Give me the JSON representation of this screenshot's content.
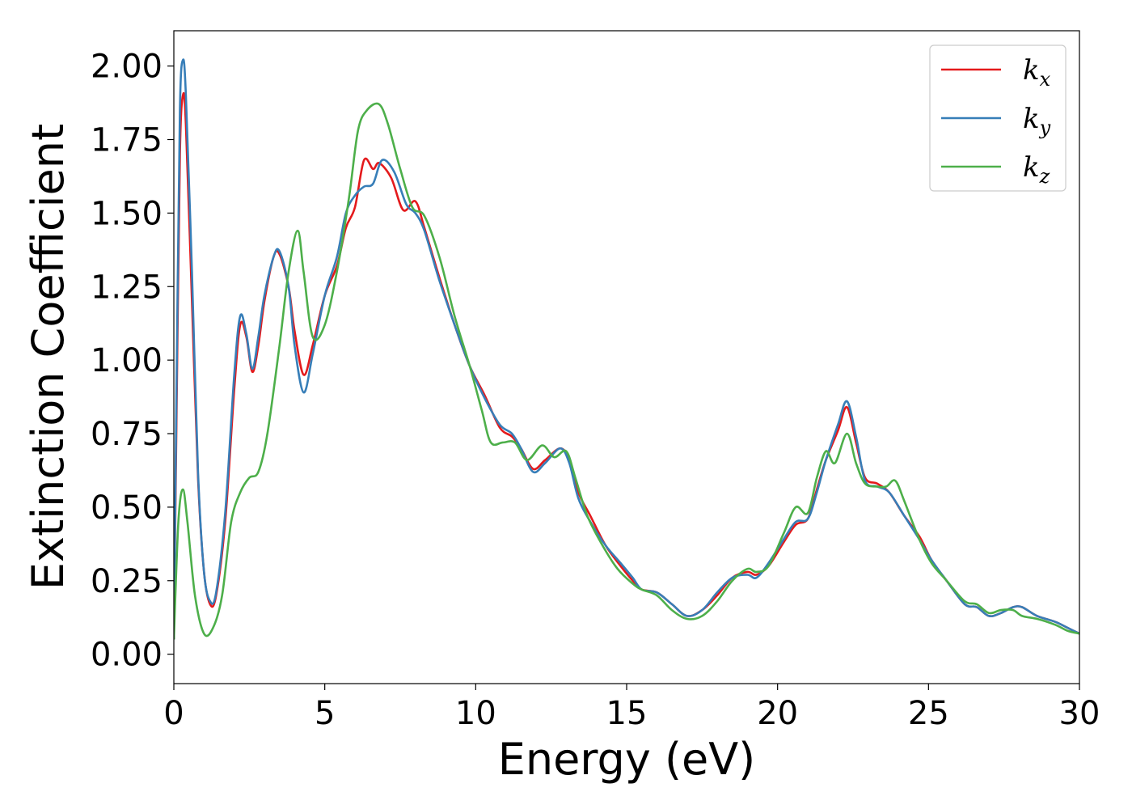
{
  "chart_data": {
    "type": "line",
    "title": "",
    "xlabel": "Energy (eV)",
    "ylabel": "Extinction Coefficient",
    "xlim": [
      0,
      30
    ],
    "ylim": [
      -0.1,
      2.12
    ],
    "xticks": [
      0,
      5,
      10,
      15,
      20,
      25,
      30
    ],
    "xtick_labels": [
      "0",
      "5",
      "10",
      "15",
      "20",
      "25",
      "30"
    ],
    "yticks": [
      0.0,
      0.25,
      0.5,
      0.75,
      1.0,
      1.25,
      1.5,
      1.75,
      2.0
    ],
    "ytick_labels": [
      "0.00",
      "0.25",
      "0.50",
      "0.75",
      "1.00",
      "1.25",
      "1.50",
      "1.75",
      "2.00"
    ],
    "grid": false,
    "legend_position": "top-right",
    "series": [
      {
        "name": "k_x",
        "label_main": "k",
        "label_sub": "x",
        "color": "#e41a1c",
        "points": [
          [
            0,
            0.05
          ],
          [
            0.1,
            0.9
          ],
          [
            0.2,
            1.7
          ],
          [
            0.3,
            1.9
          ],
          [
            0.4,
            1.8
          ],
          [
            0.6,
            1.2
          ],
          [
            0.8,
            0.6
          ],
          [
            1.0,
            0.28
          ],
          [
            1.2,
            0.17
          ],
          [
            1.4,
            0.2
          ],
          [
            1.7,
            0.45
          ],
          [
            2.0,
            0.9
          ],
          [
            2.2,
            1.12
          ],
          [
            2.4,
            1.08
          ],
          [
            2.6,
            0.96
          ],
          [
            2.8,
            1.05
          ],
          [
            3.0,
            1.2
          ],
          [
            3.3,
            1.35
          ],
          [
            3.5,
            1.36
          ],
          [
            3.8,
            1.25
          ],
          [
            4.0,
            1.1
          ],
          [
            4.3,
            0.95
          ],
          [
            4.6,
            1.05
          ],
          [
            5.0,
            1.22
          ],
          [
            5.4,
            1.32
          ],
          [
            5.7,
            1.45
          ],
          [
            6.0,
            1.52
          ],
          [
            6.3,
            1.68
          ],
          [
            6.6,
            1.65
          ],
          [
            6.8,
            1.67
          ],
          [
            7.2,
            1.62
          ],
          [
            7.6,
            1.51
          ],
          [
            8.0,
            1.54
          ],
          [
            8.3,
            1.45
          ],
          [
            8.8,
            1.28
          ],
          [
            9.3,
            1.12
          ],
          [
            9.8,
            0.98
          ],
          [
            10.3,
            0.88
          ],
          [
            10.8,
            0.77
          ],
          [
            11.2,
            0.74
          ],
          [
            11.5,
            0.7
          ],
          [
            11.9,
            0.63
          ],
          [
            12.3,
            0.66
          ],
          [
            12.8,
            0.7
          ],
          [
            13.1,
            0.66
          ],
          [
            13.4,
            0.55
          ],
          [
            13.8,
            0.47
          ],
          [
            14.3,
            0.37
          ],
          [
            14.8,
            0.3
          ],
          [
            15.2,
            0.25
          ],
          [
            15.5,
            0.22
          ],
          [
            16.0,
            0.21
          ],
          [
            16.5,
            0.17
          ],
          [
            17.0,
            0.13
          ],
          [
            17.5,
            0.15
          ],
          [
            18.0,
            0.2
          ],
          [
            18.5,
            0.26
          ],
          [
            19.0,
            0.28
          ],
          [
            19.3,
            0.27
          ],
          [
            19.7,
            0.3
          ],
          [
            20.2,
            0.38
          ],
          [
            20.6,
            0.44
          ],
          [
            21.0,
            0.46
          ],
          [
            21.3,
            0.56
          ],
          [
            21.6,
            0.66
          ],
          [
            22.0,
            0.76
          ],
          [
            22.3,
            0.84
          ],
          [
            22.6,
            0.72
          ],
          [
            22.9,
            0.6
          ],
          [
            23.3,
            0.58
          ],
          [
            23.7,
            0.55
          ],
          [
            24.2,
            0.47
          ],
          [
            24.7,
            0.4
          ],
          [
            25.1,
            0.32
          ],
          [
            25.6,
            0.25
          ],
          [
            26.2,
            0.17
          ],
          [
            26.6,
            0.16
          ],
          [
            27.0,
            0.13
          ],
          [
            27.4,
            0.14
          ],
          [
            27.8,
            0.16
          ],
          [
            28.1,
            0.16
          ],
          [
            28.6,
            0.13
          ],
          [
            29.2,
            0.11
          ],
          [
            29.6,
            0.09
          ],
          [
            30.0,
            0.07
          ]
        ]
      },
      {
        "name": "k_y",
        "label_main": "k",
        "label_sub": "y",
        "color": "#377eb8",
        "points": [
          [
            0,
            0.05
          ],
          [
            0.1,
            1.0
          ],
          [
            0.2,
            1.85
          ],
          [
            0.3,
            2.02
          ],
          [
            0.4,
            1.9
          ],
          [
            0.6,
            1.3
          ],
          [
            0.8,
            0.62
          ],
          [
            1.0,
            0.28
          ],
          [
            1.2,
            0.18
          ],
          [
            1.4,
            0.21
          ],
          [
            1.7,
            0.48
          ],
          [
            2.0,
            0.95
          ],
          [
            2.2,
            1.15
          ],
          [
            2.4,
            1.09
          ],
          [
            2.6,
            0.97
          ],
          [
            2.8,
            1.08
          ],
          [
            3.0,
            1.22
          ],
          [
            3.3,
            1.35
          ],
          [
            3.5,
            1.37
          ],
          [
            3.8,
            1.25
          ],
          [
            4.0,
            1.05
          ],
          [
            4.3,
            0.89
          ],
          [
            4.6,
            1.02
          ],
          [
            5.0,
            1.22
          ],
          [
            5.4,
            1.35
          ],
          [
            5.7,
            1.5
          ],
          [
            6.0,
            1.56
          ],
          [
            6.3,
            1.59
          ],
          [
            6.6,
            1.6
          ],
          [
            6.9,
            1.68
          ],
          [
            7.3,
            1.64
          ],
          [
            7.7,
            1.53
          ],
          [
            8.0,
            1.5
          ],
          [
            8.3,
            1.44
          ],
          [
            8.8,
            1.27
          ],
          [
            9.3,
            1.12
          ],
          [
            9.8,
            0.98
          ],
          [
            10.3,
            0.87
          ],
          [
            10.8,
            0.78
          ],
          [
            11.2,
            0.75
          ],
          [
            11.5,
            0.7
          ],
          [
            11.9,
            0.62
          ],
          [
            12.3,
            0.65
          ],
          [
            12.8,
            0.7
          ],
          [
            13.1,
            0.65
          ],
          [
            13.4,
            0.53
          ],
          [
            13.8,
            0.45
          ],
          [
            14.3,
            0.37
          ],
          [
            14.8,
            0.31
          ],
          [
            15.2,
            0.26
          ],
          [
            15.5,
            0.22
          ],
          [
            16.0,
            0.21
          ],
          [
            16.5,
            0.17
          ],
          [
            17.0,
            0.13
          ],
          [
            17.5,
            0.15
          ],
          [
            18.0,
            0.21
          ],
          [
            18.5,
            0.26
          ],
          [
            19.0,
            0.27
          ],
          [
            19.3,
            0.26
          ],
          [
            19.7,
            0.31
          ],
          [
            20.2,
            0.39
          ],
          [
            20.6,
            0.45
          ],
          [
            21.0,
            0.46
          ],
          [
            21.3,
            0.55
          ],
          [
            21.6,
            0.66
          ],
          [
            22.0,
            0.78
          ],
          [
            22.3,
            0.86
          ],
          [
            22.6,
            0.74
          ],
          [
            22.9,
            0.59
          ],
          [
            23.3,
            0.57
          ],
          [
            23.7,
            0.55
          ],
          [
            24.2,
            0.47
          ],
          [
            24.7,
            0.39
          ],
          [
            25.1,
            0.32
          ],
          [
            25.6,
            0.25
          ],
          [
            26.2,
            0.17
          ],
          [
            26.6,
            0.16
          ],
          [
            27.0,
            0.13
          ],
          [
            27.4,
            0.14
          ],
          [
            27.8,
            0.16
          ],
          [
            28.1,
            0.16
          ],
          [
            28.6,
            0.13
          ],
          [
            29.2,
            0.11
          ],
          [
            29.6,
            0.09
          ],
          [
            30.0,
            0.07
          ]
        ]
      },
      {
        "name": "k_z",
        "label_main": "k",
        "label_sub": "z",
        "color": "#4daf4a",
        "points": [
          [
            0,
            0.05
          ],
          [
            0.15,
            0.45
          ],
          [
            0.3,
            0.56
          ],
          [
            0.45,
            0.45
          ],
          [
            0.7,
            0.2
          ],
          [
            1.0,
            0.07
          ],
          [
            1.3,
            0.09
          ],
          [
            1.6,
            0.2
          ],
          [
            1.9,
            0.45
          ],
          [
            2.2,
            0.55
          ],
          [
            2.5,
            0.6
          ],
          [
            2.8,
            0.62
          ],
          [
            3.1,
            0.75
          ],
          [
            3.5,
            1.05
          ],
          [
            3.8,
            1.3
          ],
          [
            4.1,
            1.44
          ],
          [
            4.3,
            1.3
          ],
          [
            4.6,
            1.08
          ],
          [
            5.0,
            1.12
          ],
          [
            5.4,
            1.3
          ],
          [
            5.8,
            1.55
          ],
          [
            6.1,
            1.78
          ],
          [
            6.4,
            1.85
          ],
          [
            6.8,
            1.87
          ],
          [
            7.1,
            1.8
          ],
          [
            7.5,
            1.65
          ],
          [
            7.9,
            1.52
          ],
          [
            8.3,
            1.49
          ],
          [
            8.8,
            1.35
          ],
          [
            9.3,
            1.15
          ],
          [
            9.8,
            0.98
          ],
          [
            10.2,
            0.83
          ],
          [
            10.5,
            0.72
          ],
          [
            10.9,
            0.72
          ],
          [
            11.3,
            0.72
          ],
          [
            11.7,
            0.66
          ],
          [
            12.2,
            0.71
          ],
          [
            12.6,
            0.67
          ],
          [
            13.0,
            0.69
          ],
          [
            13.3,
            0.6
          ],
          [
            13.7,
            0.47
          ],
          [
            14.2,
            0.37
          ],
          [
            14.7,
            0.29
          ],
          [
            15.2,
            0.24
          ],
          [
            15.5,
            0.22
          ],
          [
            16.0,
            0.2
          ],
          [
            16.5,
            0.15
          ],
          [
            17.0,
            0.12
          ],
          [
            17.5,
            0.13
          ],
          [
            18.0,
            0.18
          ],
          [
            18.5,
            0.25
          ],
          [
            19.0,
            0.29
          ],
          [
            19.3,
            0.28
          ],
          [
            19.7,
            0.3
          ],
          [
            20.2,
            0.41
          ],
          [
            20.6,
            0.5
          ],
          [
            21.0,
            0.48
          ],
          [
            21.3,
            0.6
          ],
          [
            21.6,
            0.69
          ],
          [
            21.9,
            0.65
          ],
          [
            22.3,
            0.75
          ],
          [
            22.6,
            0.65
          ],
          [
            22.9,
            0.58
          ],
          [
            23.3,
            0.57
          ],
          [
            23.6,
            0.57
          ],
          [
            23.9,
            0.59
          ],
          [
            24.2,
            0.52
          ],
          [
            24.7,
            0.39
          ],
          [
            25.1,
            0.31
          ],
          [
            25.6,
            0.25
          ],
          [
            26.2,
            0.18
          ],
          [
            26.6,
            0.17
          ],
          [
            27.0,
            0.14
          ],
          [
            27.4,
            0.15
          ],
          [
            27.8,
            0.15
          ],
          [
            28.1,
            0.13
          ],
          [
            28.6,
            0.12
          ],
          [
            29.2,
            0.1
          ],
          [
            29.6,
            0.08
          ],
          [
            30.0,
            0.07
          ]
        ]
      }
    ]
  }
}
